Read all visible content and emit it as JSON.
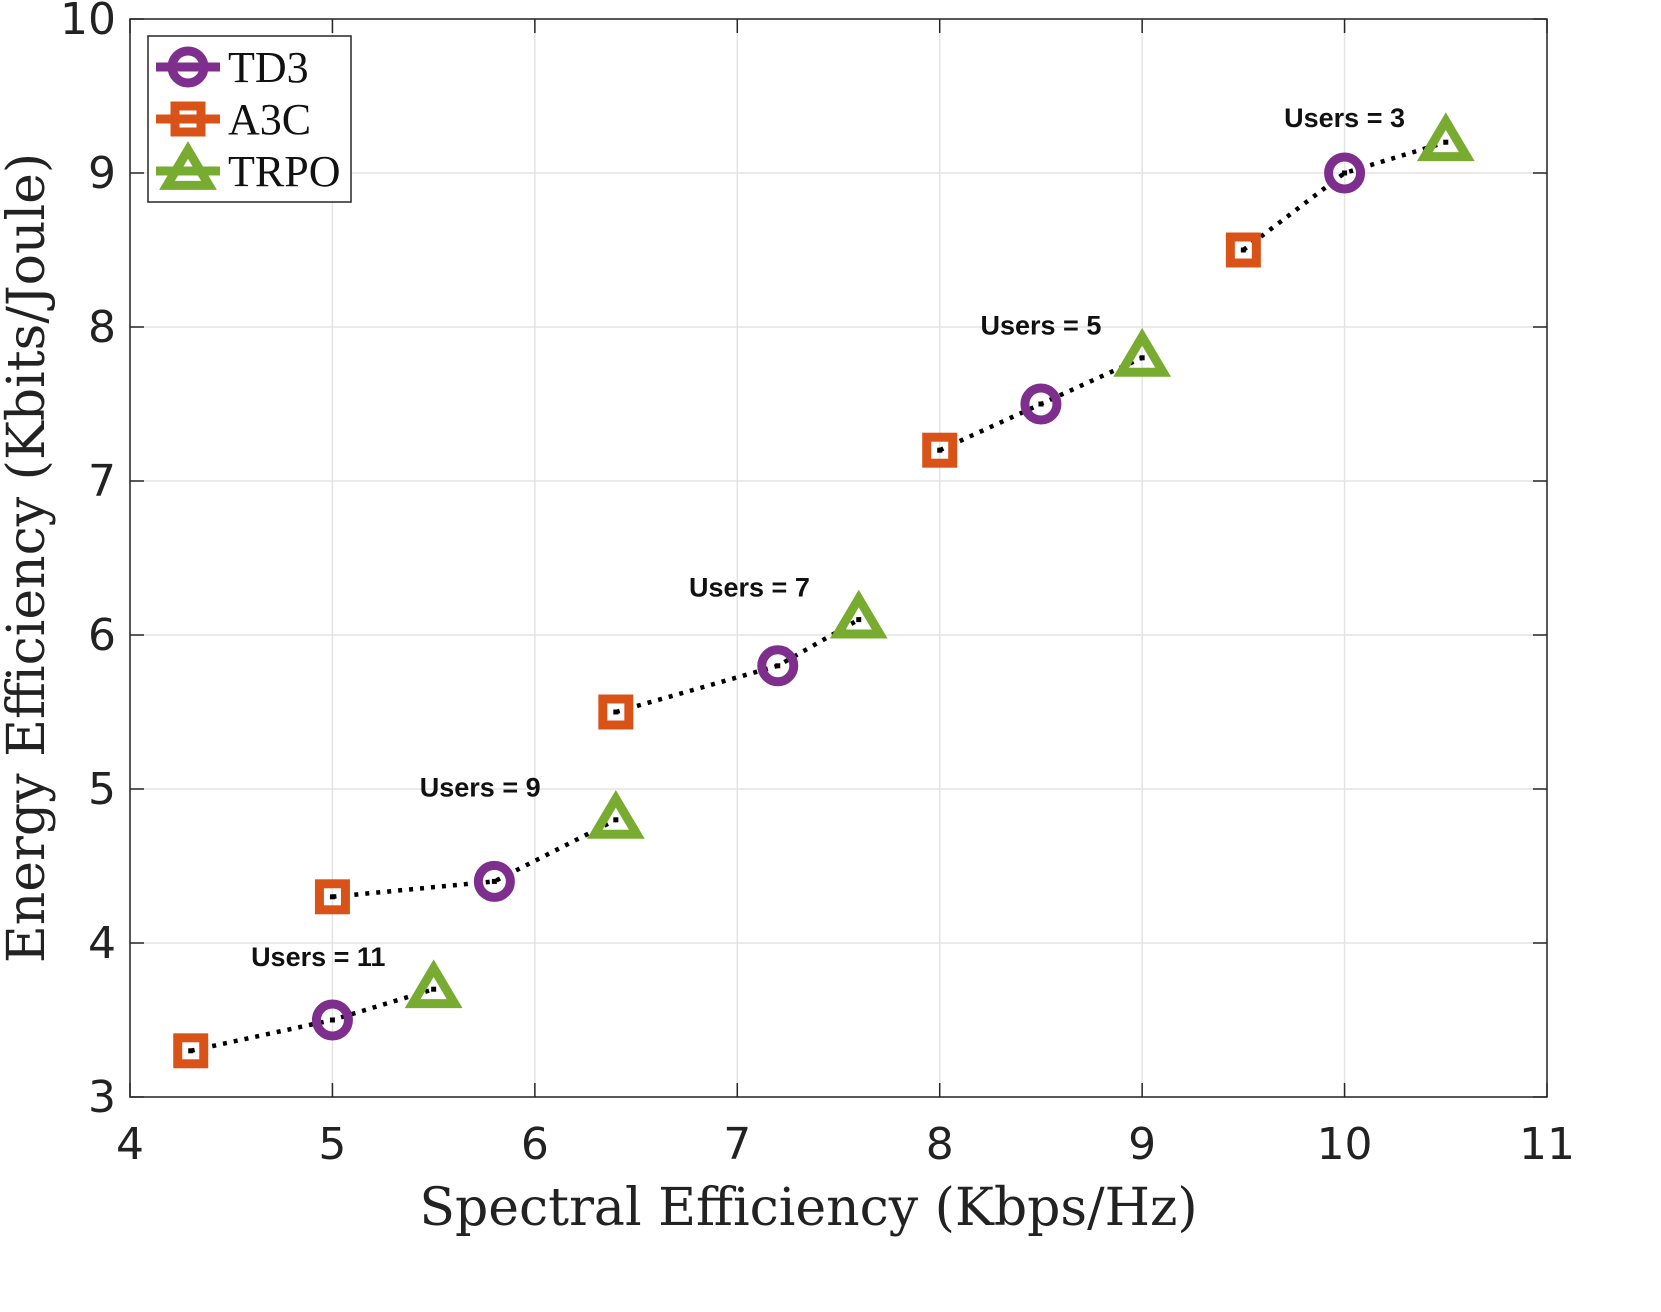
{
  "chart_data": {
    "type": "scatter",
    "title": "",
    "xlabel": "Spectral Efficiency (Kbps/Hz)",
    "ylabel": "Energy Efficiency (Kbits/Joule)",
    "xlim": [
      4,
      11
    ],
    "ylim": [
      3,
      10
    ],
    "xticks": [
      "4",
      "5",
      "6",
      "7",
      "8",
      "9",
      "10",
      "11"
    ],
    "yticks": [
      "3",
      "4",
      "5",
      "6",
      "7",
      "8",
      "9",
      "10"
    ],
    "grid": true,
    "legend_position": "top-left",
    "colors": {
      "TD3": "#7e2f8e",
      "A3C": "#d95319",
      "TRPO": "#77ac30",
      "connector": "#000000"
    },
    "series": [
      {
        "name": "TD3",
        "marker": "circle",
        "points": [
          [
            5.0,
            3.5
          ],
          [
            5.8,
            4.4
          ],
          [
            7.2,
            5.8
          ],
          [
            8.5,
            7.5
          ],
          [
            10.0,
            9.0
          ]
        ]
      },
      {
        "name": "A3C",
        "marker": "square",
        "points": [
          [
            4.3,
            3.3
          ],
          [
            5.0,
            4.3
          ],
          [
            6.4,
            5.5
          ],
          [
            8.0,
            7.2
          ],
          [
            9.5,
            8.5
          ]
        ]
      },
      {
        "name": "TRPO",
        "marker": "triangle",
        "points": [
          [
            5.5,
            3.7
          ],
          [
            6.4,
            4.8
          ],
          [
            7.6,
            6.1
          ],
          [
            9.0,
            7.8
          ],
          [
            10.5,
            9.2
          ]
        ]
      }
    ],
    "groups": [
      {
        "label": "Users = 11",
        "label_at": [
          4.93,
          3.85
        ]
      },
      {
        "label": "Users = 9",
        "label_at": [
          5.73,
          4.95
        ]
      },
      {
        "label": "Users = 7",
        "label_at": [
          7.06,
          6.25
        ]
      },
      {
        "label": "Users = 5",
        "label_at": [
          8.5,
          7.95
        ]
      },
      {
        "label": "Users = 3",
        "label_at": [
          10.0,
          9.3
        ]
      }
    ]
  }
}
